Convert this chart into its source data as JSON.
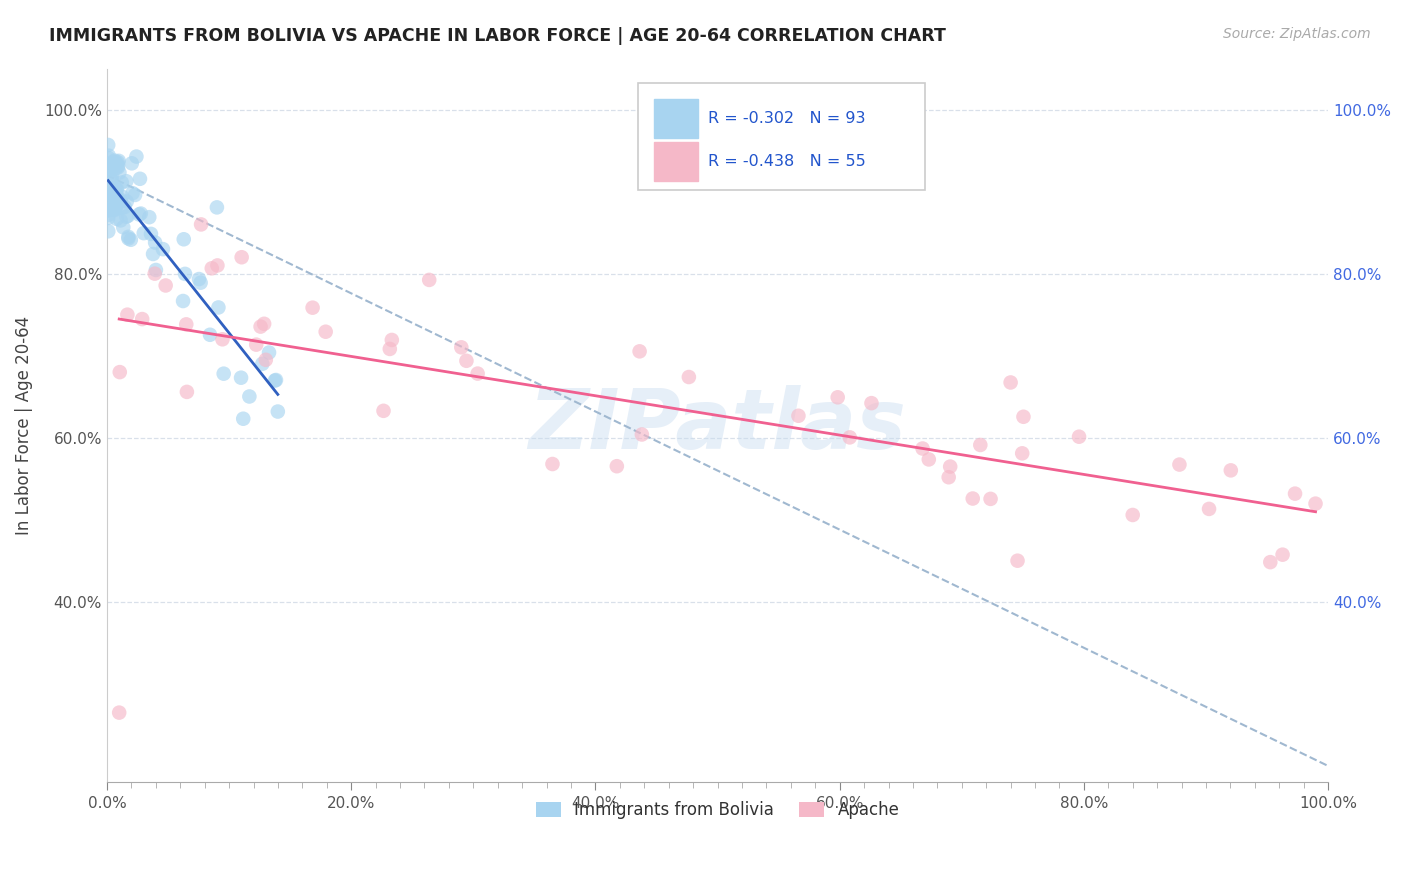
{
  "title": "IMMIGRANTS FROM BOLIVIA VS APACHE IN LABOR FORCE | AGE 20-64 CORRELATION CHART",
  "source": "Source: ZipAtlas.com",
  "ylabel": "In Labor Force | Age 20-64",
  "xlim": [
    0.0,
    1.0
  ],
  "ylim": [
    0.18,
    1.05
  ],
  "x_tick_labels": [
    "0.0%",
    "",
    "",
    "",
    "",
    "",
    "",
    "",
    "",
    "",
    "20.0%",
    "",
    "",
    "",
    "",
    "",
    "",
    "",
    "",
    "",
    "40.0%",
    "",
    "",
    "",
    "",
    "",
    "",
    "",
    "",
    "",
    "60.0%",
    "",
    "",
    "",
    "",
    "",
    "",
    "",
    "",
    "",
    "80.0%",
    "",
    "",
    "",
    "",
    "",
    "",
    "",
    "",
    "",
    "100.0%"
  ],
  "x_tick_vals": [
    0.0,
    0.02,
    0.04,
    0.06,
    0.08,
    0.1,
    0.12,
    0.14,
    0.16,
    0.18,
    0.2,
    0.22,
    0.24,
    0.26,
    0.28,
    0.3,
    0.32,
    0.34,
    0.36,
    0.38,
    0.4,
    0.42,
    0.44,
    0.46,
    0.48,
    0.5,
    0.52,
    0.54,
    0.56,
    0.58,
    0.6,
    0.62,
    0.64,
    0.66,
    0.68,
    0.7,
    0.72,
    0.74,
    0.76,
    0.78,
    0.8,
    0.82,
    0.84,
    0.86,
    0.88,
    0.9,
    0.92,
    0.94,
    0.96,
    0.98,
    1.0
  ],
  "x_major_ticks": [
    0.0,
    0.2,
    0.4,
    0.6,
    0.8,
    1.0
  ],
  "x_major_labels": [
    "0.0%",
    "20.0%",
    "40.0%",
    "60.0%",
    "80.0%",
    "100.0%"
  ],
  "y_tick_labels": [
    "40.0%",
    "60.0%",
    "80.0%",
    "100.0%"
  ],
  "y_tick_vals": [
    0.4,
    0.6,
    0.8,
    1.0
  ],
  "bolivia_color": "#a8d4f0",
  "apache_color": "#f5b8c8",
  "bolivia_line_color": "#3060c0",
  "apache_line_color": "#f06090",
  "trendline_dashed_color": "#a0b8d0",
  "R_bolivia": -0.302,
  "N_bolivia": 93,
  "R_apache": -0.438,
  "N_apache": 55,
  "legend_label_bolivia": "Immigrants from Bolivia",
  "legend_label_apache": "Apache",
  "watermark_text": "ZIPatlas",
  "background_color": "#ffffff",
  "bolivia_seed": 12,
  "apache_seed": 77
}
